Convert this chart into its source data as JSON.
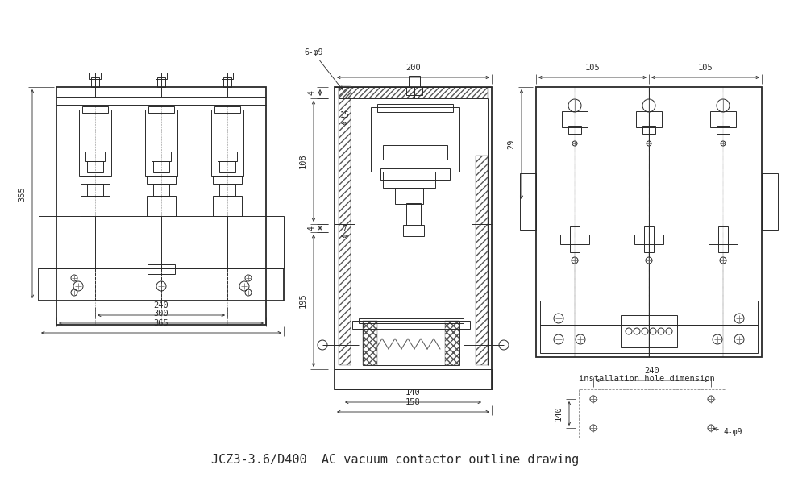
{
  "title": "JCZ3-3.6/D400  AC vacuum contactor outline drawing",
  "title_fontsize": 11,
  "line_color": "#2a2a2a",
  "bg_color": "#ffffff",
  "view1": {
    "dim_355": "355",
    "dim_240": "240",
    "dim_300": "300",
    "dim_365": "365"
  },
  "view2": {
    "dim_200": "200",
    "dim_6phi9": "6-φ9",
    "dim_4a": "4",
    "dim_15": "15",
    "dim_108": "108",
    "dim_4b": "4",
    "dim_7": "7",
    "dim_195": "195",
    "dim_140": "140",
    "dim_158": "158"
  },
  "view3": {
    "dim_105a": "105",
    "dim_105b": "105",
    "dim_29": "29",
    "install_label": "installation hole dimension",
    "dim_240": "240",
    "dim_140": "140",
    "dim_4phi9": "4-φ9"
  }
}
